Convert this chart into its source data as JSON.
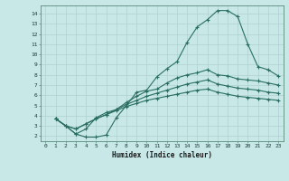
{
  "xlabel": "Humidex (Indice chaleur)",
  "ylabel": "",
  "background_color": "#c8e8e8",
  "line_color": "#2a6e62",
  "grid_color": "#b0d0d0",
  "xlim": [
    -0.5,
    23.5
  ],
  "ylim": [
    1.5,
    14.8
  ],
  "xticks": [
    0,
    1,
    2,
    3,
    4,
    5,
    6,
    7,
    8,
    9,
    10,
    11,
    12,
    13,
    14,
    15,
    16,
    17,
    18,
    19,
    20,
    21,
    22,
    23
  ],
  "yticks": [
    2,
    3,
    4,
    5,
    6,
    7,
    8,
    9,
    10,
    11,
    12,
    13,
    14
  ],
  "line1_x": [
    1,
    2,
    3,
    4,
    5,
    6,
    7,
    8,
    9,
    10,
    11,
    12,
    13,
    14,
    15,
    16,
    17,
    18,
    19,
    20,
    21,
    22,
    23
  ],
  "line1_y": [
    3.7,
    3.0,
    2.2,
    1.9,
    1.9,
    2.1,
    3.8,
    5.0,
    6.3,
    6.5,
    7.8,
    8.6,
    9.3,
    11.2,
    12.7,
    13.4,
    14.3,
    14.3,
    13.7,
    11.0,
    8.8,
    8.5,
    7.9
  ],
  "line2_x": [
    1,
    2,
    3,
    4,
    5,
    6,
    7,
    8,
    9,
    10,
    11,
    12,
    13,
    14,
    15,
    16,
    17,
    18,
    19,
    20,
    21,
    22,
    23
  ],
  "line2_y": [
    3.7,
    3.0,
    2.2,
    2.7,
    3.8,
    4.3,
    4.6,
    5.3,
    5.9,
    6.4,
    6.6,
    7.2,
    7.7,
    8.0,
    8.2,
    8.5,
    8.0,
    7.9,
    7.6,
    7.5,
    7.4,
    7.2,
    7.0
  ],
  "line3_x": [
    1,
    2,
    3,
    4,
    5,
    6,
    7,
    8,
    9,
    10,
    11,
    12,
    13,
    14,
    15,
    16,
    17,
    18,
    19,
    20,
    21,
    22,
    23
  ],
  "line3_y": [
    3.7,
    3.0,
    2.7,
    3.2,
    3.7,
    4.1,
    4.6,
    5.1,
    5.5,
    5.9,
    6.2,
    6.5,
    6.8,
    7.1,
    7.3,
    7.5,
    7.1,
    6.9,
    6.7,
    6.6,
    6.5,
    6.3,
    6.2
  ],
  "line4_x": [
    1,
    2,
    3,
    4,
    5,
    6,
    7,
    8,
    9,
    10,
    11,
    12,
    13,
    14,
    15,
    16,
    17,
    18,
    19,
    20,
    21,
    22,
    23
  ],
  "line4_y": [
    3.7,
    3.0,
    2.7,
    3.2,
    3.7,
    4.1,
    4.5,
    4.9,
    5.2,
    5.5,
    5.7,
    5.9,
    6.1,
    6.3,
    6.5,
    6.6,
    6.3,
    6.1,
    5.9,
    5.8,
    5.7,
    5.6,
    5.5
  ]
}
